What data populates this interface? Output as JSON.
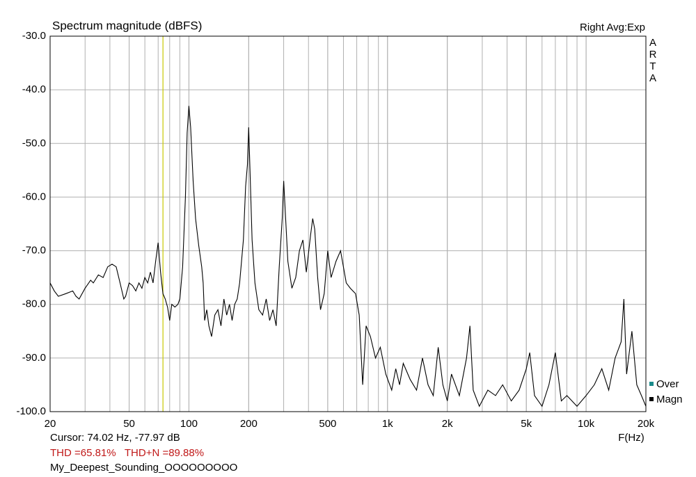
{
  "chart_data": {
    "type": "line",
    "title": "Spectrum magnitude (dBFS)",
    "right_note": "Right Avg:Exp",
    "side_label": [
      "A",
      "R",
      "T",
      "A"
    ],
    "x_label": "F(Hz)",
    "log_x": true,
    "grid": true,
    "xlim": [
      20,
      20000
    ],
    "ylim": [
      -100,
      -30
    ],
    "xticks": [
      20,
      50,
      100,
      200,
      500,
      {
        "value": 1000,
        "label": "1k"
      },
      {
        "value": 2000,
        "label": "2k"
      },
      {
        "value": 5000,
        "label": "5k"
      },
      {
        "value": 10000,
        "label": "10k"
      },
      {
        "value": 20000,
        "label": "20k"
      }
    ],
    "yticks": [
      {
        "value": -100,
        "label": "-100.0"
      },
      {
        "value": -90,
        "label": "-90.0"
      },
      {
        "value": -80,
        "label": "-80.0"
      },
      {
        "value": -70,
        "label": "-70.0"
      },
      {
        "value": -60,
        "label": "-60.0"
      },
      {
        "value": -50,
        "label": "-50.0"
      },
      {
        "value": -40,
        "label": "-40.0"
      },
      {
        "value": -30,
        "label": "-30.0"
      }
    ],
    "cursor_x": 74.02,
    "cursor_color": "#c8c800",
    "legend_position": "lower right",
    "overload_legend": {
      "name": "Over",
      "color": "#1a8a8a"
    },
    "x": [
      20,
      21,
      22,
      24,
      26,
      27,
      28,
      30,
      32,
      33,
      35,
      37,
      39,
      41,
      43,
      45,
      47,
      48,
      50,
      52,
      54,
      56,
      58,
      60,
      62,
      64,
      66,
      68,
      70,
      72,
      74,
      76,
      78,
      80,
      82,
      85,
      88,
      90,
      93,
      96,
      98,
      100,
      102,
      105,
      108,
      112,
      116,
      118,
      120,
      123,
      126,
      130,
      135,
      140,
      145,
      150,
      155,
      160,
      165,
      170,
      175,
      180,
      188,
      193,
      197,
      200,
      203,
      208,
      215,
      225,
      235,
      245,
      255,
      265,
      275,
      285,
      295,
      300,
      305,
      315,
      330,
      345,
      360,
      375,
      390,
      410,
      420,
      430,
      445,
      460,
      480,
      500,
      520,
      550,
      580,
      620,
      650,
      690,
      720,
      750,
      780,
      820,
      870,
      920,
      980,
      1050,
      1100,
      1150,
      1200,
      1300,
      1400,
      1500,
      1600,
      1700,
      1800,
      1900,
      2000,
      2100,
      2300,
      2500,
      2600,
      2700,
      2900,
      3200,
      3500,
      3800,
      4200,
      4600,
      5000,
      5200,
      5500,
      6000,
      6500,
      7000,
      7500,
      8000,
      9000,
      10000,
      11000,
      12000,
      13000,
      14000,
      15000,
      15500,
      16000,
      17000,
      18000,
      19000,
      20000
    ],
    "series": [
      {
        "name": "Magn",
        "color": "#000000",
        "values": [
          -76,
          -77.5,
          -78.5,
          -78,
          -77.5,
          -78.5,
          -79,
          -77,
          -75.5,
          -76,
          -74.5,
          -75,
          -73,
          -72.5,
          -73,
          -76,
          -79,
          -78.5,
          -76,
          -76.5,
          -77.5,
          -76,
          -77,
          -75,
          -76,
          -74,
          -76,
          -72,
          -68.5,
          -74,
          -78,
          -79,
          -80.5,
          -83,
          -80,
          -80.5,
          -80,
          -79,
          -73,
          -60,
          -48,
          -43,
          -47,
          -57,
          -64,
          -69,
          -73,
          -76,
          -83,
          -81,
          -84,
          -86,
          -82,
          -81,
          -84,
          -79,
          -82,
          -80,
          -83,
          -80,
          -79,
          -76,
          -68,
          -58,
          -54,
          -47,
          -55,
          -68,
          -76,
          -81,
          -82,
          -79,
          -83,
          -81,
          -84,
          -73,
          -64,
          -57,
          -62,
          -72,
          -77,
          -75,
          -70,
          -68,
          -74,
          -67,
          -64,
          -66,
          -75,
          -81,
          -78,
          -70,
          -75,
          -72,
          -70,
          -76,
          -77,
          -78,
          -82,
          -95,
          -84,
          -86,
          -90,
          -88,
          -93,
          -96,
          -92,
          -95,
          -91,
          -94,
          -96,
          -90,
          -95,
          -97,
          -88,
          -95,
          -98,
          -93,
          -97,
          -90,
          -84,
          -96,
          -99,
          -96,
          -97,
          -95,
          -98,
          -96,
          -92,
          -89,
          -97,
          -99,
          -95,
          -89,
          -98,
          -97,
          -99,
          -97,
          -95,
          -92,
          -96,
          -90,
          -87,
          -79,
          -93,
          -85,
          -95,
          -97,
          -99
        ]
      }
    ],
    "cursor_text": "Cursor: 74.02 Hz, -77.97 dB",
    "thd_text": "THD =65.81%   THD+N =89.88%",
    "file_name": "My_Deepest_Sounding_OOOOOOOOO"
  }
}
